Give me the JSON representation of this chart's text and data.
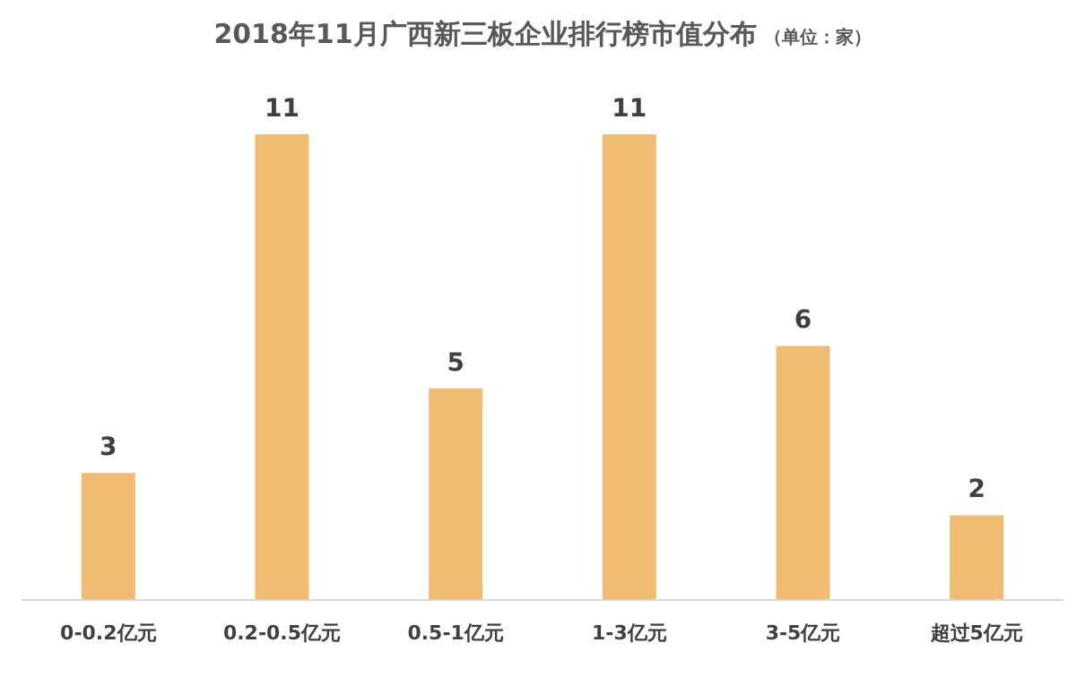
{
  "chart_data": {
    "type": "bar",
    "title": "2018年11月广西新三板企业排行榜市值分布",
    "subtitle": "（单位：家）",
    "categories": [
      "0-0.2亿元",
      "0.2-0.5亿元",
      "0.5-1亿元",
      "1-3亿元",
      "3-5亿元",
      "超过5亿元"
    ],
    "values": [
      3,
      11,
      5,
      11,
      6,
      2
    ],
    "color": "#f0bc72",
    "data_labels": true
  }
}
